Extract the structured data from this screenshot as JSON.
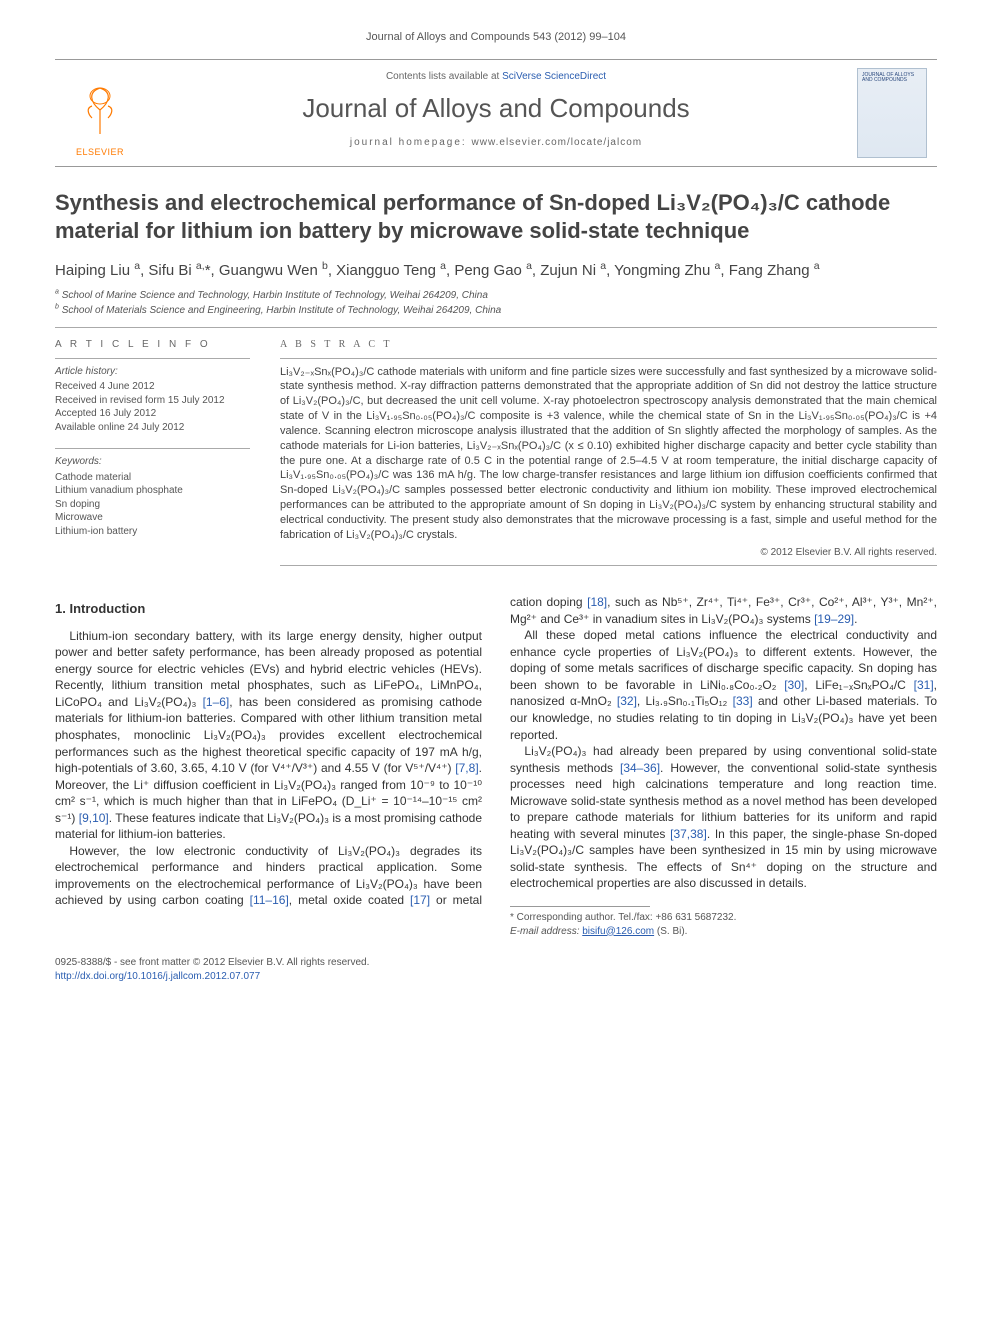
{
  "running_head": "Journal of Alloys and Compounds 543 (2012) 99–104",
  "masthead": {
    "contents_prefix": "Contents lists available at ",
    "contents_link": "SciVerse ScienceDirect",
    "journal_name": "Journal of Alloys and Compounds",
    "homepage_label": "journal homepage: ",
    "homepage_url": "www.elsevier.com/locate/jalcom",
    "elsevier": "ELSEVIER",
    "cover_title": "JOURNAL OF ALLOYS AND COMPOUNDS"
  },
  "title": "Synthesis and electrochemical performance of Sn-doped Li₃V₂(PO₄)₃/C cathode material for lithium ion battery by microwave solid-state technique",
  "authors_html": "Haiping Liu <sup>a</sup>, Sifu Bi <sup>a,</sup>*, Guangwu Wen <sup>b</sup>, Xiangguo Teng <sup>a</sup>, Peng Gao <sup>a</sup>, Zujun Ni <sup>a</sup>, Yongming Zhu <sup>a</sup>, Fang Zhang <sup>a</sup>",
  "affiliations": {
    "a": "School of Marine Science and Technology, Harbin Institute of Technology, Weihai 264209, China",
    "b": "School of Materials Science and Engineering, Harbin Institute of Technology, Weihai 264209, China"
  },
  "info": {
    "heading": "A R T I C L E   I N F O",
    "history_label": "Article history:",
    "history": [
      "Received 4 June 2012",
      "Received in revised form 15 July 2012",
      "Accepted 16 July 2012",
      "Available online 24 July 2012"
    ],
    "keywords_label": "Keywords:",
    "keywords": [
      "Cathode material",
      "Lithium vanadium phosphate",
      "Sn doping",
      "Microwave",
      "Lithium-ion battery"
    ]
  },
  "abstract": {
    "heading": "A B S T R A C T",
    "text": "Li₃V₂₋ₓSnₓ(PO₄)₃/C cathode materials with uniform and fine particle sizes were successfully and fast synthesized by a microwave solid-state synthesis method. X-ray diffraction patterns demonstrated that the appropriate addition of Sn did not destroy the lattice structure of Li₃V₂(PO₄)₃/C, but decreased the unit cell volume. X-ray photoelectron spectroscopy analysis demonstrated that the main chemical state of V in the Li₃V₁.₉₅Sn₀.₀₅(PO₄)₃/C composite is +3 valence, while the chemical state of Sn in the Li₃V₁.₉₅Sn₀.₀₅(PO₄)₃/C is +4 valence. Scanning electron microscope analysis illustrated that the addition of Sn slightly affected the morphology of samples. As the cathode materials for Li-ion batteries, Li₃V₂₋ₓSnₓ(PO₄)₃/C (x ≤ 0.10) exhibited higher discharge capacity and better cycle stability than the pure one. At a discharge rate of 0.5 C in the potential range of 2.5–4.5 V at room temperature, the initial discharge capacity of Li₃V₁.₉₅Sn₀.₀₅(PO₄)₃/C was 136 mA h/g. The low charge-transfer resistances and large lithium ion diffusion coefficients confirmed that Sn-doped Li₃V₂(PO₄)₃/C samples possessed better electronic conductivity and lithium ion mobility. These improved electrochemical performances can be attributed to the appropriate amount of Sn doping in Li₃V₂(PO₄)₃/C system by enhancing structural stability and electrical conductivity. The present study also demonstrates that the microwave processing is a fast, simple and useful method for the fabrication of Li₃V₂(PO₄)₃/C crystals.",
    "copyright": "© 2012 Elsevier B.V. All rights reserved."
  },
  "body": {
    "section1_heading": "1. Introduction",
    "p1": "Lithium-ion secondary battery, with its large energy density, higher output power and better safety performance, has been already proposed as potential energy source for electric vehicles (EVs) and hybrid electric vehicles (HEVs). Recently, lithium transition metal phosphates, such as LiFePO₄, LiMnPO₄, LiCoPO₄ and Li₃V₂(PO₄)₃ <a class='cite'>[1–6]</a>, has been considered as promising cathode materials for lithium-ion batteries. Compared with other lithium transition metal phosphates, monoclinic Li₃V₂(PO₄)₃ provides excellent electrochemical performances such as the highest theoretical specific capacity of 197 mA h/g, high-potentials of 3.60, 3.65, 4.10 V (for V⁴⁺/V³⁺) and 4.55 V (for V⁵⁺/V⁴⁺) <a class='cite'>[7,8]</a>. Moreover, the Li⁺ diffusion coefficient in Li₃V₂(PO₄)₃ ranged from 10⁻⁹ to 10⁻¹⁰ cm² s⁻¹, which is much higher than that in LiFePO₄ (D_Li⁺ = 10⁻¹⁴–10⁻¹⁵ cm² s⁻¹) <a class='cite'>[9,10]</a>. These features indicate that Li₃V₂(PO₄)₃ is a most promising cathode material for lithium-ion batteries.",
    "p2": "However, the low electronic conductivity of Li₃V₂(PO₄)₃ degrades its electrochemical performance and hinders practical application. Some improvements on the electrochemical performance of Li₃V₂(PO₄)₃ have been achieved by using carbon coating <a class='cite'>[11–16]</a>, metal oxide coated <a class='cite'>[17]</a> or metal cation doping <a class='cite'>[18]</a>, such as Nb⁵⁺, Zr⁴⁺, Ti⁴⁺, Fe³⁺, Cr³⁺, Co²⁺, Al³⁺, Y³⁺, Mn²⁺, Mg²⁺ and Ce³⁺ in vanadium sites in Li₃V₂(PO₄)₃ systems <a class='cite'>[19–29]</a>.",
    "p3": "All these doped metal cations influence the electrical conductivity and enhance cycle properties of Li₃V₂(PO₄)₃ to different extents. However, the doping of some metals sacrifices of discharge specific capacity. Sn doping has been shown to be favorable in LiNi₀.₈Co₀.₂O₂ <a class='cite'>[30]</a>, LiFe₁₋ₓSnₓPO₄/C <a class='cite'>[31]</a>, nanosized α-MnO₂ <a class='cite'>[32]</a>, Li₃.₉Sn₀.₁Ti₅O₁₂ <a class='cite'>[33]</a> and other Li-based materials. To our knowledge, no studies relating to tin doping in Li₃V₂(PO₄)₃ have yet been reported.",
    "p4": "Li₃V₂(PO₄)₃ had already been prepared by using conventional solid-state synthesis methods <a class='cite'>[34–36]</a>. However, the conventional solid-state synthesis processes need high calcinations temperature and long reaction time. Microwave solid-state synthesis method as a novel method has been developed to prepare cathode materials for lithium batteries for its uniform and rapid heating with several minutes <a class='cite'>[37,38]</a>. In this paper, the single-phase Sn-doped Li₃V₂(PO₄)₃/C samples have been synthesized in 15 min by using microwave solid-state synthesis. The effects of Sn⁴⁺ doping on the structure and electrochemical properties are also discussed in details."
  },
  "footnotes": {
    "corresponding": "* Corresponding author. Tel./fax: +86 631 5687232.",
    "email_label": "E-mail address:",
    "email": "bisifu@126.com",
    "email_name": "(S. Bi)."
  },
  "footer": {
    "line1": "0925-8388/$ - see front matter © 2012 Elsevier B.V. All rights reserved.",
    "doi": "http://dx.doi.org/10.1016/j.jallcom.2012.07.077"
  },
  "colors": {
    "link": "#2a5db0",
    "orange": "#ff7a00",
    "rule": "#999999",
    "text": "#444444"
  }
}
